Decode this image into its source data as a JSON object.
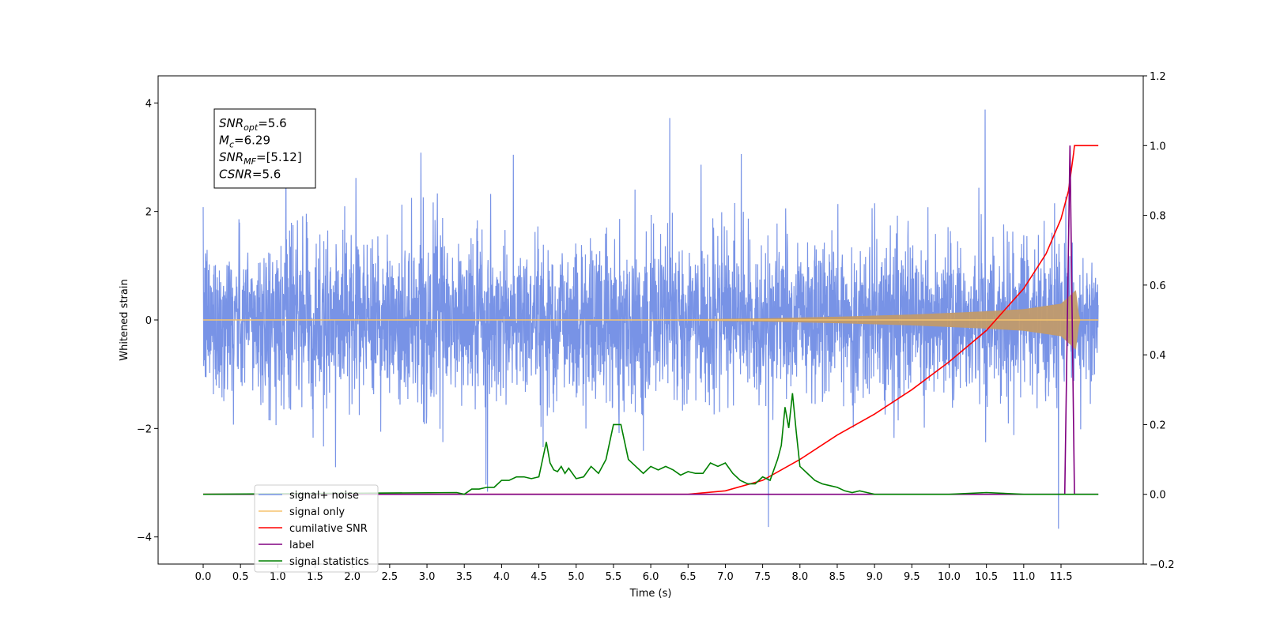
{
  "chart_data": {
    "type": "line",
    "xlabel": "Time (s)",
    "ylabel_left": "Whitened strain",
    "ylim_left": [
      -4.5,
      4.5
    ],
    "ylim_right": [
      -0.2,
      1.2
    ],
    "x_ticks": [
      0.0,
      0.5,
      1.0,
      1.5,
      2.0,
      2.5,
      3.0,
      3.5,
      4.0,
      4.5,
      5.0,
      5.5,
      6.0,
      6.5,
      7.0,
      7.5,
      8.0,
      8.5,
      9.0,
      9.5,
      10.0,
      10.5,
      11.0,
      11.5
    ],
    "x_tick_labels": [
      "0.0",
      "0.5",
      "1.0",
      "1.5",
      "2.0",
      "2.5",
      "3.0",
      "3.5",
      "4.0",
      "4.5",
      "5.0",
      "5.5",
      "6.0",
      "6.5",
      "7.0",
      "7.5",
      "8.0",
      "8.5",
      "9.0",
      "9.5",
      "10.0",
      "10.5",
      "11.0",
      "11.5"
    ],
    "y_ticks_left": [
      -4,
      -2,
      0,
      2,
      4
    ],
    "y_tick_labels_left": [
      "−4",
      "−2",
      "0",
      "2",
      "4"
    ],
    "y_ticks_right": [
      -0.2,
      0.0,
      0.2,
      0.4,
      0.6,
      0.8,
      1.0,
      1.2
    ],
    "y_tick_labels_right": [
      "−0.2",
      "0.0",
      "0.2",
      "0.4",
      "0.6",
      "0.8",
      "1.0",
      "1.2"
    ],
    "x_range": [
      0,
      12
    ],
    "annotation": [
      {
        "sym": "SNR",
        "sub": "opt",
        "rest": "=5.6"
      },
      {
        "sym": "M",
        "sub": "c",
        "rest": "=6.29"
      },
      {
        "sym": "SNR",
        "sub": "MF",
        "rest": "=[5.12]"
      },
      {
        "sym": "CSNR",
        "sub": "",
        "rest": "=5.6"
      }
    ],
    "legend_position": "lower-left",
    "series": [
      {
        "name": "signal+ noise",
        "color": "#7893e6",
        "axis": "left",
        "description": "noise amplitude ~ ±1.6 with spikes to ±4"
      },
      {
        "name": "signal only",
        "color": "#f5c46e",
        "axis": "left",
        "envelope": {
          "x": [
            0,
            6,
            7.5,
            8.5,
            9.5,
            10.5,
            11.0,
            11.5,
            11.7,
            11.75
          ],
          "amp": [
            0.0,
            0.005,
            0.03,
            0.06,
            0.1,
            0.16,
            0.2,
            0.3,
            0.55,
            0.0
          ]
        }
      },
      {
        "name": "cumilative SNR",
        "color": "#ff0000",
        "axis": "right",
        "x": [
          0,
          6.5,
          7.0,
          7.5,
          8.0,
          8.5,
          9.0,
          9.5,
          10.0,
          10.5,
          11.0,
          11.3,
          11.5,
          11.6,
          11.67,
          11.68,
          12.0
        ],
        "y": [
          0.0,
          0.0,
          0.01,
          0.04,
          0.1,
          0.17,
          0.23,
          0.3,
          0.38,
          0.47,
          0.59,
          0.69,
          0.79,
          0.87,
          0.98,
          1.0,
          1.0
        ]
      },
      {
        "name": "label",
        "color": "#800080",
        "axis": "right",
        "x": [
          0,
          11.55,
          11.62,
          11.68,
          12.0
        ],
        "y": [
          0.0,
          0.0,
          1.0,
          0.0,
          0.0
        ]
      },
      {
        "name": "signal statistics",
        "color": "#008000",
        "axis": "right",
        "x": [
          0,
          3.4,
          3.5,
          3.6,
          3.7,
          3.8,
          3.9,
          4.0,
          4.1,
          4.2,
          4.3,
          4.4,
          4.5,
          4.6,
          4.65,
          4.7,
          4.75,
          4.8,
          4.85,
          4.9,
          5.0,
          5.1,
          5.2,
          5.3,
          5.4,
          5.5,
          5.6,
          5.7,
          5.8,
          5.9,
          6.0,
          6.1,
          6.2,
          6.3,
          6.4,
          6.5,
          6.6,
          6.7,
          6.8,
          6.9,
          7.0,
          7.1,
          7.2,
          7.3,
          7.4,
          7.5,
          7.6,
          7.7,
          7.75,
          7.8,
          7.85,
          7.9,
          7.95,
          8.0,
          8.1,
          8.2,
          8.3,
          8.4,
          8.5,
          8.6,
          8.7,
          8.8,
          8.9,
          9.0,
          9.5,
          10.0,
          10.5,
          11.0,
          11.5,
          12.0
        ],
        "y": [
          0.0,
          0.005,
          0.0,
          0.015,
          0.015,
          0.02,
          0.02,
          0.04,
          0.04,
          0.05,
          0.05,
          0.045,
          0.05,
          0.15,
          0.09,
          0.07,
          0.065,
          0.08,
          0.06,
          0.075,
          0.045,
          0.05,
          0.08,
          0.06,
          0.1,
          0.2,
          0.2,
          0.1,
          0.08,
          0.06,
          0.08,
          0.07,
          0.08,
          0.07,
          0.055,
          0.065,
          0.06,
          0.06,
          0.09,
          0.08,
          0.09,
          0.06,
          0.04,
          0.03,
          0.03,
          0.05,
          0.04,
          0.1,
          0.14,
          0.25,
          0.19,
          0.29,
          0.18,
          0.08,
          0.06,
          0.04,
          0.03,
          0.025,
          0.02,
          0.01,
          0.005,
          0.01,
          0.005,
          0.0,
          0.0,
          0.0,
          0.005,
          0.0,
          0.0,
          0.0
        ]
      }
    ]
  }
}
